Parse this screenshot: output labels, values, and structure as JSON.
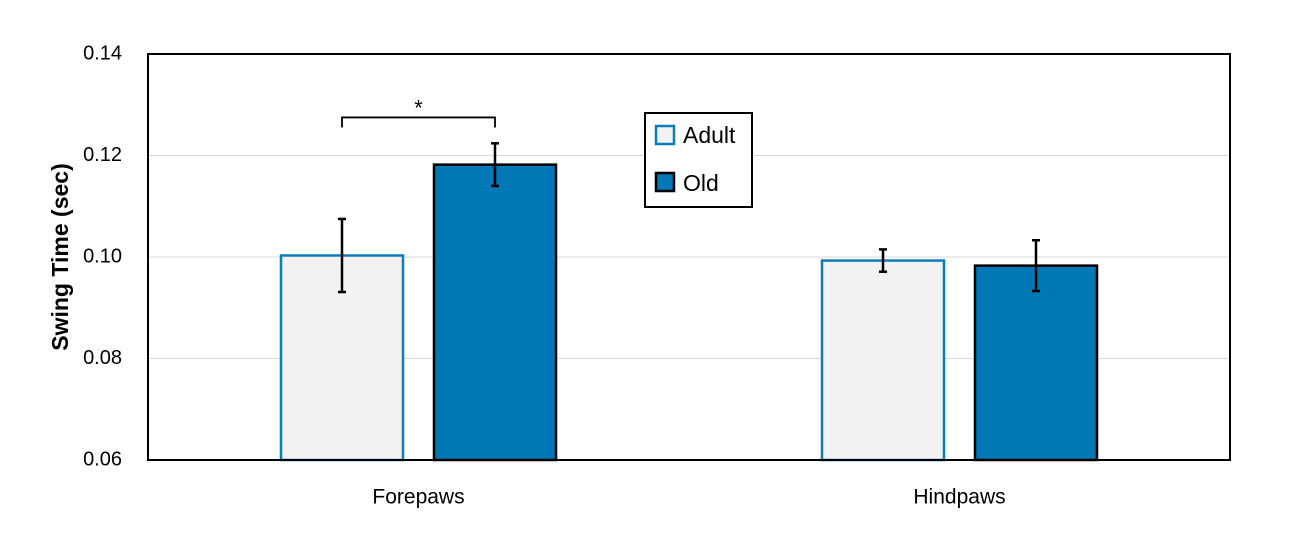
{
  "chart_data": {
    "type": "bar",
    "ylabel": "Swing Time (sec)",
    "xlabel": "",
    "ylim": [
      0.06,
      0.14
    ],
    "yticks": [
      "0.06",
      "0.08",
      "0.10",
      "0.12",
      "0.14"
    ],
    "ytick_values": [
      0.06,
      0.08,
      0.1,
      0.12,
      0.14
    ],
    "gridlines": true,
    "legend_position": "top-center",
    "categories": [
      "Forepaws",
      "Hindpaws"
    ],
    "series": [
      {
        "name": "Adult",
        "values": [
          0.1003,
          0.0993
        ],
        "errors": [
          0.0072,
          0.0022
        ],
        "fill": "#f2f2f2",
        "stroke": "#0e7cb8"
      },
      {
        "name": "Old",
        "values": [
          0.1182,
          0.0983
        ],
        "errors": [
          0.0042,
          0.005
        ],
        "fill": "#0078b5",
        "stroke": "#000000"
      }
    ],
    "annotations": [
      {
        "text": "*",
        "category": "Forepaws",
        "between": [
          "Adult",
          "Old"
        ],
        "y": 0.1275
      }
    ]
  }
}
